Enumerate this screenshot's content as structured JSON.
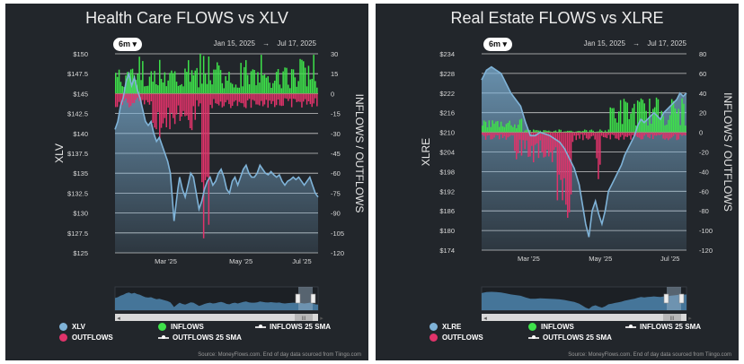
{
  "colors": {
    "price_fill": "#7fb3d8",
    "price_line": "#7fb3d8",
    "inflows": "#3ee24a",
    "outflows": "#e0336a",
    "grid": "#e6e6e6",
    "axis_text": "#d9d9d9"
  },
  "panels": [
    {
      "title": "Health Care FLOWS vs XLV",
      "range_button": "6m",
      "range_button_icon": "caret-down-icon",
      "date_from": "Jan 15, 2025",
      "date_arrow": "→",
      "date_to": "Jul 17, 2025",
      "left_axis_label": "XLV",
      "right_axis_label": "INFLOWS / OUTFLOWS",
      "legend": {
        "price": "XLV",
        "inflows": "INFLOWS",
        "inflows_sma": "INFLOWS 25 SMA",
        "outflows": "OUTFLOWS",
        "outflows_sma": "OUTFLOWS 25 SMA"
      },
      "source": "Source: MoneyFlows.com. End of day data sourced from Tiingo.com",
      "navigator_handle": "III"
    },
    {
      "title": "Real Estate FLOWS vs XLRE",
      "range_button": "6m",
      "range_button_icon": "caret-down-icon",
      "date_from": "Jan 15, 2025",
      "date_arrow": "→",
      "date_to": "Jul 17, 2025",
      "left_axis_label": "XLRE",
      "right_axis_label": "INFLOWS / OUTFLOWS",
      "legend": {
        "price": "XLRE",
        "inflows": "INFLOWS",
        "inflows_sma": "INFLOWS 25 SMA",
        "outflows": "OUTFLOWS",
        "outflows_sma": "OUTFLOWS 25 SMA"
      },
      "source": "Source: MoneyFlows.com. End of day data sourced from Tiingo.com",
      "navigator_handle": "III"
    }
  ],
  "chart_data": [
    {
      "type": "line",
      "title": "Health Care FLOWS vs XLV",
      "x_ticks": [
        "Mar '25",
        "May '25",
        "Jul '25"
      ],
      "y_left": {
        "label": "XLV",
        "ticks": [
          "$125",
          "$127.5",
          "$130",
          "$132.5",
          "$135",
          "$137.5",
          "$140",
          "$142.5",
          "$145",
          "$147.5",
          "$150"
        ],
        "range": [
          125,
          150
        ]
      },
      "y_right": {
        "label": "INFLOWS / OUTFLOWS",
        "ticks": [
          30,
          15,
          0,
          -15,
          -30,
          -45,
          -60,
          -75,
          -90,
          -105,
          -120
        ],
        "range": [
          -120,
          30
        ]
      },
      "series": [
        {
          "name": "XLV",
          "axis": "left",
          "points": [
            [
              0,
              140.5
            ],
            [
              3,
              141.5
            ],
            [
              6,
              143.5
            ],
            [
              9,
              144.5
            ],
            [
              12,
              146.5
            ],
            [
              15,
              147.5
            ],
            [
              18,
              146
            ],
            [
              21,
              147
            ],
            [
              24,
              145.5
            ],
            [
              27,
              144.5
            ],
            [
              30,
              143
            ],
            [
              33,
              141.5
            ],
            [
              36,
              141
            ],
            [
              39,
              141.5
            ],
            [
              42,
              140
            ],
            [
              45,
              139
            ],
            [
              48,
              139.5
            ],
            [
              51,
              138.5
            ],
            [
              54,
              137.5
            ],
            [
              57,
              136.5
            ],
            [
              60,
              135
            ],
            [
              62,
              132
            ],
            [
              64,
              129
            ],
            [
              66,
              131
            ],
            [
              68,
              133
            ],
            [
              70,
              134.5
            ],
            [
              73,
              133
            ],
            [
              76,
              132
            ],
            [
              79,
              133.5
            ],
            [
              82,
              135
            ],
            [
              85,
              134.5
            ],
            [
              88,
              132.5
            ],
            [
              91,
              130.5
            ],
            [
              94,
              131.5
            ],
            [
              97,
              133
            ],
            [
              100,
              134
            ],
            [
              103,
              134.5
            ],
            [
              106,
              133.5
            ],
            [
              109,
              134
            ],
            [
              112,
              135
            ],
            [
              115,
              135.5
            ],
            [
              118,
              134.5
            ],
            [
              121,
              133
            ],
            [
              124,
              132.5
            ],
            [
              127,
              134
            ],
            [
              130,
              134.5
            ],
            [
              133,
              133.5
            ],
            [
              136,
              134.5
            ],
            [
              139,
              135.5
            ],
            [
              142,
              136
            ],
            [
              145,
              135
            ],
            [
              148,
              134.5
            ],
            [
              151,
              134.5
            ],
            [
              154,
              135
            ],
            [
              157,
              136
            ],
            [
              160,
              135.5
            ],
            [
              163,
              135
            ],
            [
              166,
              134.8
            ],
            [
              169,
              135.2
            ],
            [
              172,
              134.8
            ],
            [
              175,
              134.5
            ],
            [
              178,
              134.8
            ],
            [
              181,
              134
            ],
            [
              184,
              133.5
            ],
            [
              187,
              134
            ],
            [
              190,
              134.2
            ],
            [
              193,
              134.5
            ],
            [
              196,
              134.2
            ],
            [
              199,
              134.5
            ],
            [
              202,
              134
            ],
            [
              205,
              133.5
            ],
            [
              208,
              134
            ],
            [
              211,
              134.5
            ],
            [
              214,
              133.5
            ],
            [
              217,
              132.5
            ],
            [
              220,
              132
            ]
          ]
        },
        {
          "name": "INFLOWS",
          "axis": "right",
          "description": "daily bars mostly 0 to +20"
        },
        {
          "name": "OUTFLOWS",
          "axis": "right",
          "description": "daily bars mostly 0 to -10, spike to about -110 in early Apr '25"
        }
      ]
    },
    {
      "type": "line",
      "title": "Real Estate FLOWS vs XLRE",
      "x_ticks": [
        "Mar '25",
        "May '25",
        "Jul '25"
      ],
      "y_left": {
        "label": "XLRE",
        "ticks": [
          "$174",
          "$180",
          "$186",
          "$192",
          "$198",
          "$204",
          "$210",
          "$216",
          "$222",
          "$228",
          "$234"
        ],
        "range": [
          174,
          234
        ]
      },
      "y_right": {
        "label": "INFLOWS / OUTFLOWS",
        "ticks": [
          80,
          60,
          40,
          20,
          0,
          -20,
          -40,
          -60,
          -80,
          -100,
          -120
        ],
        "range": [
          -120,
          80
        ]
      },
      "series": [
        {
          "name": "XLRE",
          "axis": "left",
          "points": [
            [
              0,
              226
            ],
            [
              3,
              229
            ],
            [
              6,
              230
            ],
            [
              9,
              229
            ],
            [
              12,
              228
            ],
            [
              15,
              225
            ],
            [
              18,
              222
            ],
            [
              21,
              220
            ],
            [
              24,
              218
            ],
            [
              27,
              213
            ],
            [
              30,
              209
            ],
            [
              33,
              209
            ],
            [
              36,
              210
            ],
            [
              39,
              209.5
            ],
            [
              42,
              209
            ],
            [
              45,
              208
            ],
            [
              48,
              207
            ],
            [
              51,
              205
            ],
            [
              54,
              202
            ],
            [
              57,
              199
            ],
            [
              60,
              194
            ],
            [
              62,
              188
            ],
            [
              64,
              182
            ],
            [
              66,
              178
            ],
            [
              68,
              186
            ],
            [
              70,
              189
            ],
            [
              72,
              185
            ],
            [
              74,
              182
            ],
            [
              76,
              186
            ],
            [
              78,
              192
            ],
            [
              80,
              194
            ],
            [
              82,
              196
            ],
            [
              84,
              198
            ],
            [
              86,
              200
            ],
            [
              88,
              203
            ],
            [
              90,
              205
            ],
            [
              92,
              207
            ],
            [
              94,
              209
            ],
            [
              96,
              212
            ],
            [
              98,
              214
            ],
            [
              100,
              213
            ],
            [
              102,
              214
            ],
            [
              104,
              215
            ],
            [
              106,
              216
            ],
            [
              108,
              215
            ],
            [
              110,
              214
            ],
            [
              112,
              216
            ],
            [
              114,
              217
            ],
            [
              116,
              218
            ],
            [
              118,
              219
            ],
            [
              120,
              220
            ],
            [
              122,
              222
            ],
            [
              124,
              221
            ],
            [
              126,
              222
            ]
          ]
        },
        {
          "name": "INFLOWS",
          "axis": "right",
          "description": "daily bars 0 to +15 early and 0 to +40 after Jun '25"
        },
        {
          "name": "OUTFLOWS",
          "axis": "right",
          "description": "daily bars 0 to -30 in Mar '25, spikes to about -100 in early Apr '25"
        }
      ]
    }
  ]
}
